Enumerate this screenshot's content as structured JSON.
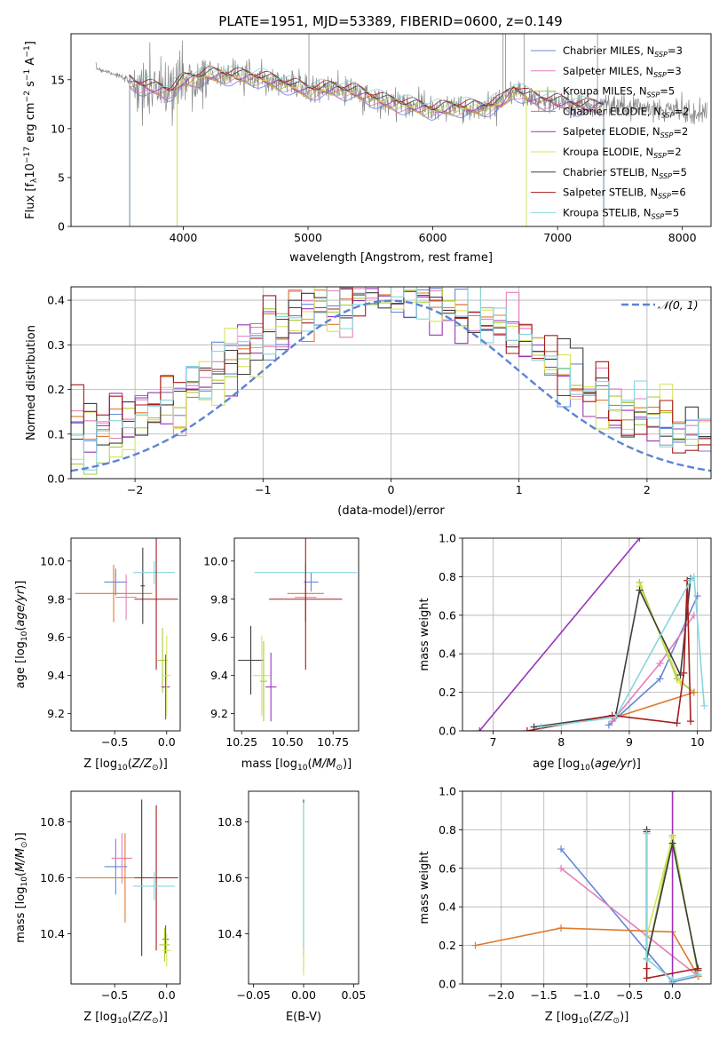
{
  "chart_data": [
    {
      "type": "line",
      "panel": "spectrum",
      "title": "PLATE=1951, MJD=53389, FIBERID=0600, z=0.149",
      "xlabel": "wavelength [Angstrom, rest frame]",
      "ylabel": "Flux [f_λ10^-17 erg cm^-2 s^-1 A^-1]",
      "xlim": [
        3100,
        8230
      ],
      "ylim": [
        0,
        19.7
      ],
      "xticks": [
        4000,
        5000,
        6000,
        7000,
        8000
      ],
      "yticks": [
        0,
        5,
        10,
        15
      ],
      "grid": false,
      "legend_position": "top-right",
      "series": [
        {
          "name": "Chabrier MILES, N_SSP=3",
          "color": "#6488d8"
        },
        {
          "name": "Salpeter MILES, N_SSP=3",
          "color": "#e47fb9"
        },
        {
          "name": "Kroupa MILES, N_SSP=5",
          "color": "#a6cb3e"
        },
        {
          "name": "Chabrier ELODIE, N_SSP=2",
          "color": "#e07a2c"
        },
        {
          "name": "Salpeter ELODIE, N_SSP=2",
          "color": "#9b33b9"
        },
        {
          "name": "Kroupa ELODIE, N_SSP=2",
          "color": "#d8e25c"
        },
        {
          "name": "Chabrier STELIB, N_SSP=5",
          "color": "#3d3d3d"
        },
        {
          "name": "Salpeter STELIB, N_SSP=6",
          "color": "#a61c1c"
        },
        {
          "name": "Kroupa STELIB, N_SSP=5",
          "color": "#86d6de"
        }
      ],
      "data_color": "#888888",
      "continuum": {
        "x": [
          3300,
          3450,
          3600,
          3700,
          3800,
          3900,
          4000,
          4200,
          4400,
          4600,
          4800,
          5000,
          5200,
          5400,
          5600,
          5800,
          6000,
          6200,
          6400,
          6550,
          6650,
          6750,
          6850,
          7000,
          7200,
          7400,
          7600,
          7800,
          8000,
          8200
        ],
        "y": [
          16.2,
          15.6,
          14.6,
          14.3,
          14.0,
          13.8,
          14.9,
          15.5,
          15.4,
          15.2,
          14.6,
          13.9,
          14.1,
          13.7,
          12.8,
          12.4,
          11.9,
          12.2,
          12.1,
          12.7,
          14.0,
          13.3,
          12.9,
          12.7,
          12.2,
          12.4,
          12.2,
          12.0,
          11.8,
          11.8
        ]
      },
      "model_range": [
        3570,
        7370
      ]
    },
    {
      "type": "bar",
      "panel": "residual-histogram",
      "xlabel": "(data-model)/error",
      "ylabel": "Normed distribution",
      "xlim": [
        -2.5,
        2.5
      ],
      "ylim": [
        0,
        0.43
      ],
      "xticks": [
        -2,
        -1,
        0,
        1,
        2
      ],
      "yticks": [
        0.0,
        0.1,
        0.2,
        0.3,
        0.4
      ],
      "grid": true,
      "legend_position": "top-right",
      "reference_label": "𝒩(0, 1)",
      "reference_color": "#5b84d4",
      "bin_width": 0.1
    },
    {
      "type": "scatter",
      "panel": "age-vs-Z",
      "xlabel": "Z [log10(Z/Z_sun)]",
      "ylabel": "age [log10(age/yr)]",
      "xlim": [
        -0.92,
        0.13
      ],
      "ylim": [
        9.11,
        10.12
      ],
      "xticks": [
        -0.5,
        0.0
      ],
      "yticks": [
        9.2,
        9.4,
        9.6,
        9.8,
        10.0
      ],
      "grid": false,
      "crosses": [
        {
          "color": "#6488d8",
          "x": -0.49,
          "y": 9.89,
          "xerr": 0.11,
          "yerr": 0.07
        },
        {
          "color": "#e47fb9",
          "x": -0.39,
          "y": 9.81,
          "xerr": 0.1,
          "yerr": 0.12
        },
        {
          "color": "#e07a2c",
          "x": -0.51,
          "y": 9.83,
          "xerr": 0.37,
          "yerr": 0.15
        },
        {
          "color": "#3d3d3d",
          "x": -0.23,
          "y": 9.87,
          "xerr": 0.02,
          "yerr": 0.2
        },
        {
          "color": "#86d6de",
          "x": -0.12,
          "y": 9.94,
          "xerr": 0.2,
          "yerr": 0.06
        },
        {
          "color": "#a61c1c",
          "x": -0.1,
          "y": 9.8,
          "xerr": 0.21,
          "yerr": 0.37
        },
        {
          "color": "#a6cb3e",
          "x": -0.04,
          "y": 9.48,
          "xerr": 0.05,
          "yerr": 0.17
        },
        {
          "color": "#9b33b9",
          "x": -0.01,
          "y": 9.34,
          "xerr": 0.04,
          "yerr": 0.17
        },
        {
          "color": "#d8e25c",
          "x": 0.0,
          "y": 9.4,
          "xerr": 0.04,
          "yerr": 0.21
        }
      ]
    },
    {
      "type": "scatter",
      "panel": "age-vs-mass",
      "xlabel": "mass [log10(M/M_sun)]",
      "xlim": [
        10.21,
        10.89
      ],
      "ylim": [
        9.11,
        10.12
      ],
      "xticks": [
        10.25,
        10.5,
        10.75
      ],
      "yticks": [
        9.2,
        9.4,
        9.6,
        9.8,
        10.0
      ],
      "grid": false,
      "crosses": [
        {
          "color": "#3d3d3d",
          "x": 10.3,
          "y": 9.48,
          "xerr": 0.07,
          "yerr": 0.18
        },
        {
          "color": "#d8e25c",
          "x": 10.36,
          "y": 9.4,
          "xerr": 0.05,
          "yerr": 0.21
        },
        {
          "color": "#a6cb3e",
          "x": 10.37,
          "y": 9.37,
          "xerr": 0.02,
          "yerr": 0.21
        },
        {
          "color": "#9b33b9",
          "x": 10.41,
          "y": 9.34,
          "xerr": 0.03,
          "yerr": 0.18
        },
        {
          "color": "#6488d8",
          "x": 10.63,
          "y": 9.89,
          "xerr": 0.04,
          "yerr": 0.05
        },
        {
          "color": "#e47fb9",
          "x": 10.6,
          "y": 9.81,
          "xerr": 0.06,
          "yerr": 0.12
        },
        {
          "color": "#e07a2c",
          "x": 10.6,
          "y": 9.83,
          "xerr": 0.1,
          "yerr": 0.15
        },
        {
          "color": "#86d6de",
          "x": 10.6,
          "y": 9.94,
          "xerr": 0.28,
          "yerr": 0.06
        },
        {
          "color": "#a61c1c",
          "x": 10.6,
          "y": 9.8,
          "xerr": 0.2,
          "yerr": 0.37
        }
      ]
    },
    {
      "type": "line",
      "panel": "mass-weight-vs-age",
      "xlabel": "age [log10(age/yr)]",
      "ylabel": "mass weight",
      "xlim": [
        6.55,
        10.2
      ],
      "ylim": [
        0,
        1
      ],
      "xticks": [
        7,
        8,
        9,
        10
      ],
      "yticks": [
        0.0,
        0.2,
        0.4,
        0.6,
        0.8,
        1.0
      ],
      "grid": true,
      "series": [
        {
          "color": "#6488d8",
          "x": [
            8.7,
            9.45,
            10.0
          ],
          "y": [
            0.03,
            0.27,
            0.7
          ]
        },
        {
          "color": "#e47fb9",
          "x": [
            8.75,
            9.45,
            9.95
          ],
          "y": [
            0.05,
            0.35,
            0.6
          ]
        },
        {
          "color": "#a6cb3e",
          "x": [
            9.15,
            9.7,
            9.95
          ],
          "y": [
            0.77,
            0.27,
            0.2
          ]
        },
        {
          "color": "#e07a2c",
          "x": [
            8.8,
            9.95
          ],
          "y": [
            0.07,
            0.2
          ]
        },
        {
          "color": "#9b33b9",
          "x": [
            6.8,
            9.15
          ],
          "y": [
            0.0,
            1.0
          ]
        },
        {
          "color": "#d8e25c",
          "x": [
            9.15,
            9.75
          ],
          "y": [
            0.75,
            0.25
          ]
        },
        {
          "color": "#3d3d3d",
          "x": [
            7.6,
            8.8,
            9.15,
            9.75,
            9.9
          ],
          "y": [
            0.02,
            0.08,
            0.73,
            0.29,
            0.79
          ]
        },
        {
          "color": "#a61c1c",
          "x": [
            7.5,
            8.75,
            9.7,
            9.8,
            9.85,
            9.9
          ],
          "y": [
            0.0,
            0.08,
            0.04,
            0.3,
            0.78,
            0.05
          ]
        },
        {
          "color": "#86d6de",
          "x": [
            7.7,
            8.8,
            9.9,
            9.95,
            10.1
          ],
          "y": [
            0.02,
            0.07,
            0.78,
            0.8,
            0.13
          ]
        }
      ]
    },
    {
      "type": "scatter",
      "panel": "mass-vs-Z",
      "xlabel": "Z [log10(Z/Z_sun)]",
      "ylabel": "mass [log10(M/M_sun)]",
      "xlim": [
        -0.92,
        0.13
      ],
      "ylim": [
        10.22,
        10.91
      ],
      "xticks": [
        -0.5,
        0.0
      ],
      "yticks": [
        10.4,
        10.6,
        10.8
      ],
      "grid": false,
      "crosses": [
        {
          "color": "#6488d8",
          "x": -0.49,
          "y": 10.64,
          "xerr": 0.11,
          "yerr": 0.1
        },
        {
          "color": "#e47fb9",
          "x": -0.43,
          "y": 10.67,
          "xerr": 0.1,
          "yerr": 0.09
        },
        {
          "color": "#e07a2c",
          "x": -0.4,
          "y": 10.6,
          "xerr": 0.48,
          "yerr": 0.16
        },
        {
          "color": "#3d3d3d",
          "x": -0.24,
          "y": 10.6,
          "xerr": 0.02,
          "yerr": 0.28
        },
        {
          "color": "#a61c1c",
          "x": -0.1,
          "y": 10.6,
          "xerr": 0.21,
          "yerr": 0.26
        },
        {
          "color": "#86d6de",
          "x": -0.12,
          "y": 10.57,
          "xerr": 0.2,
          "yerr": 0.05
        },
        {
          "color": "#9b33b9",
          "x": -0.01,
          "y": 10.38,
          "xerr": 0.03,
          "yerr": 0.05
        },
        {
          "color": "#a6cb3e",
          "x": -0.02,
          "y": 10.36,
          "xerr": 0.05,
          "yerr": 0.06
        },
        {
          "color": "#d8e25c",
          "x": 0.0,
          "y": 10.34,
          "xerr": 0.04,
          "yerr": 0.06
        }
      ]
    },
    {
      "type": "scatter",
      "panel": "mass-vs-ebv",
      "xlabel": "E(B-V)",
      "xlim": [
        -0.055,
        0.055
      ],
      "ylim": [
        10.22,
        10.91
      ],
      "xticks": [
        -0.05,
        0.0,
        0.05
      ],
      "yticks": [
        10.4,
        10.6,
        10.8
      ],
      "grid": false,
      "crosses": [
        {
          "color": "#3d3d3d",
          "x": 0.0,
          "y": 10.6,
          "xerr": 0.0,
          "yerr": 0.28
        },
        {
          "color": "#86d6de",
          "x": 0.0,
          "y": 10.57,
          "xerr": 0.0,
          "yerr": 0.3
        },
        {
          "color": "#d8e25c",
          "x": 0.0,
          "y": 10.3,
          "xerr": 0.0,
          "yerr": 0.05
        }
      ]
    },
    {
      "type": "line",
      "panel": "mass-weight-vs-Z",
      "xlabel": "Z [log10(Z/Z_sun)]",
      "ylabel": "mass weight",
      "xlim": [
        -2.45,
        0.45
      ],
      "ylim": [
        0,
        1
      ],
      "xticks": [
        -2.0,
        -1.5,
        -1.0,
        -0.5,
        0.0
      ],
      "yticks": [
        0.0,
        0.2,
        0.4,
        0.6,
        0.8,
        1.0
      ],
      "grid": true,
      "series": [
        {
          "color": "#6488d8",
          "x": [
            -1.3,
            0.0,
            0.3
          ],
          "y": [
            0.7,
            0.01,
            0.04
          ]
        },
        {
          "color": "#e47fb9",
          "x": [
            -1.3,
            0.3
          ],
          "y": [
            0.6,
            0.04
          ]
        },
        {
          "color": "#a6cb3e",
          "x": [
            -0.3,
            0.0,
            0.3
          ],
          "y": [
            0.13,
            0.77,
            0.05
          ]
        },
        {
          "color": "#e07a2c",
          "x": [
            -2.3,
            -1.3,
            0.0,
            0.3
          ],
          "y": [
            0.2,
            0.29,
            0.27,
            0.04
          ]
        },
        {
          "color": "#9b33b9",
          "x": [
            0.0,
            0.0
          ],
          "y": [
            0.0,
            1.0
          ]
        },
        {
          "color": "#d8e25c",
          "x": [
            -0.3,
            0.0
          ],
          "y": [
            0.25,
            0.76
          ]
        },
        {
          "color": "#3d3d3d",
          "x": [
            -0.3,
            -0.3,
            0.0,
            0.3
          ],
          "y": [
            0.8,
            0.13,
            0.73,
            0.07
          ]
        },
        {
          "color": "#a61c1c",
          "x": [
            -0.3,
            -0.3,
            -0.3,
            0.3
          ],
          "y": [
            0.79,
            0.08,
            0.03,
            0.08
          ]
        },
        {
          "color": "#86d6de",
          "x": [
            -0.3,
            -0.3,
            0.0,
            0.3
          ],
          "y": [
            0.78,
            0.13,
            0.02,
            0.05
          ]
        }
      ]
    }
  ]
}
